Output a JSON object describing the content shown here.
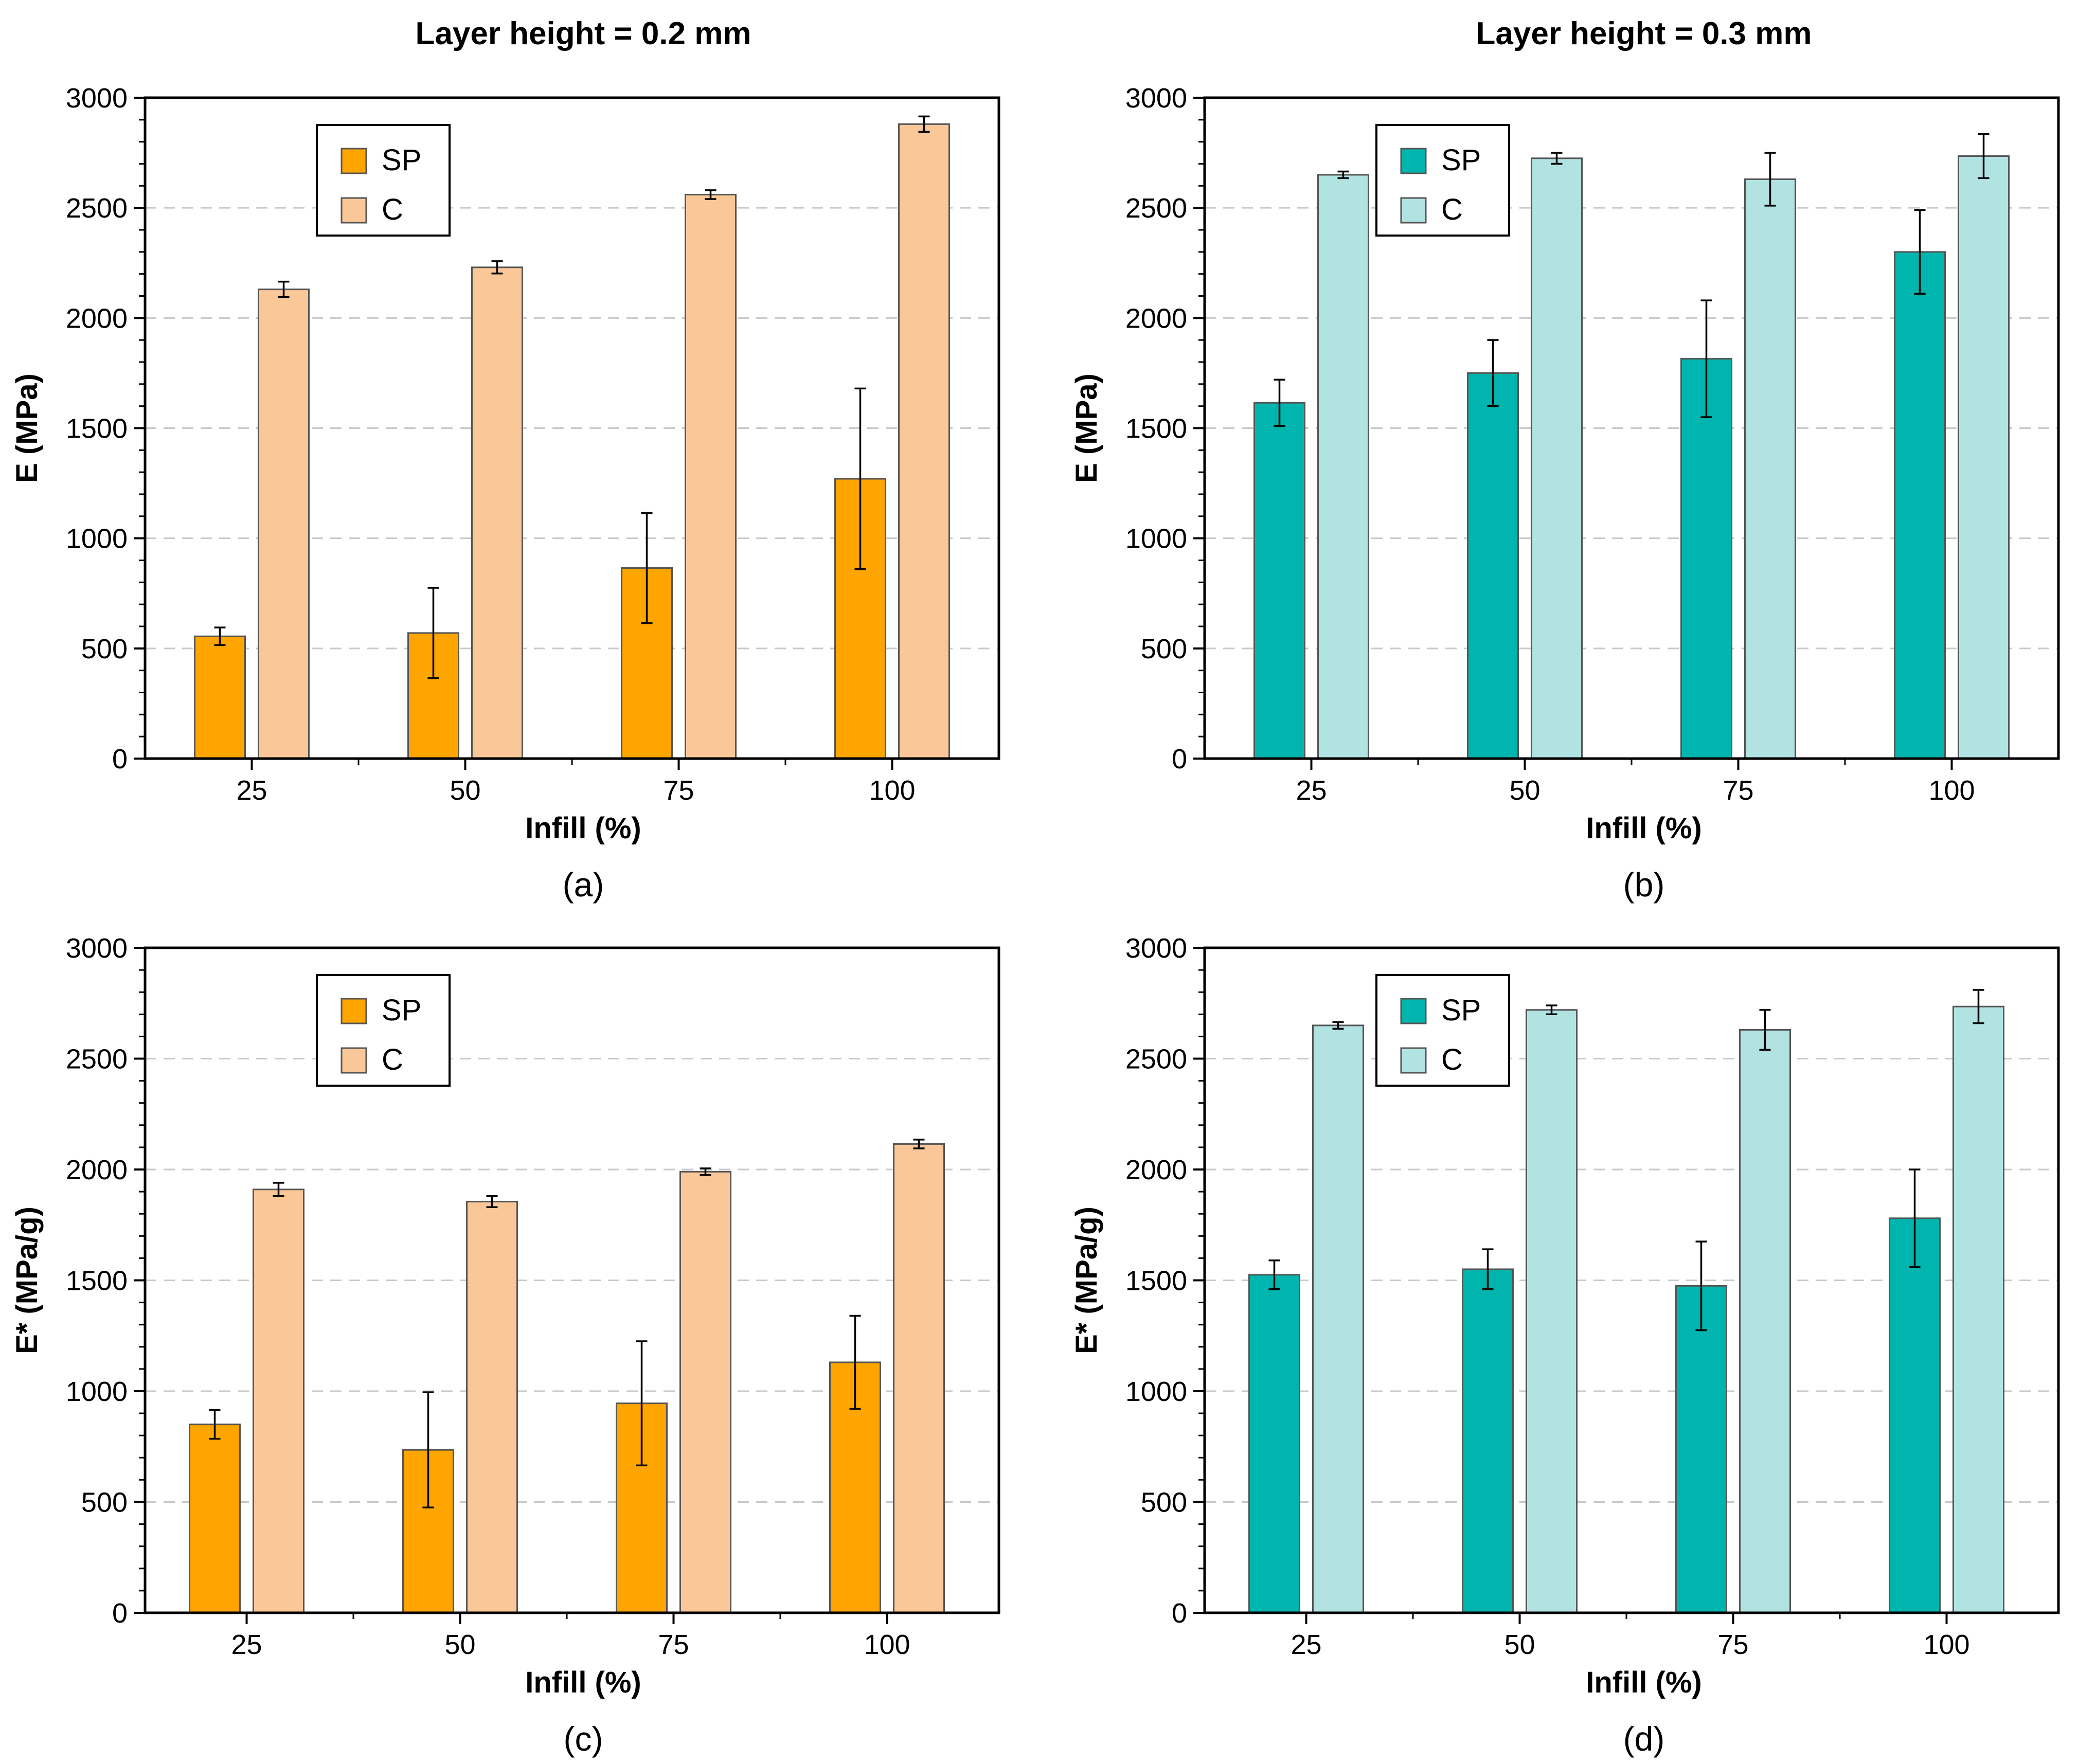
{
  "column_titles": [
    "Layer height = 0.2 mm",
    "Layer height = 0.3 mm"
  ],
  "colors": {
    "sp_orange": "#FFA500",
    "c_orange": "#FAC898",
    "sp_teal": "#00B5AD",
    "c_teal": "#B2E3E3",
    "bar_edge": "#555555",
    "grid": "#C8C8C8"
  },
  "chart_data": [
    {
      "type": "bar",
      "panel": "(a)",
      "title": "Layer height = 0.2 mm",
      "xlabel": "Infill (%)",
      "ylabel": "E (MPa)",
      "ylim": [
        0,
        3000
      ],
      "yticks": [
        0,
        500,
        1000,
        1500,
        2000,
        2500,
        3000
      ],
      "categories": [
        "25",
        "50",
        "75",
        "100"
      ],
      "legend_position": "top-left",
      "grid": "horizontal dashed",
      "series": [
        {
          "name": "SP",
          "values": [
            555,
            570,
            865,
            1270
          ],
          "errors": [
            40,
            205,
            250,
            410
          ]
        },
        {
          "name": "C",
          "values": [
            2130,
            2230,
            2560,
            2880
          ],
          "errors": [
            35,
            28,
            20,
            35
          ]
        }
      ]
    },
    {
      "type": "bar",
      "panel": "(b)",
      "title": "Layer height = 0.3 mm",
      "xlabel": "Infill (%)",
      "ylabel": "E (MPa)",
      "ylim": [
        0,
        3000
      ],
      "yticks": [
        0,
        500,
        1000,
        1500,
        2000,
        2500,
        3000
      ],
      "categories": [
        "25",
        "50",
        "75",
        "100"
      ],
      "legend_position": "top-left",
      "grid": "horizontal dashed",
      "series": [
        {
          "name": "SP",
          "values": [
            1615,
            1750,
            1815,
            2300
          ],
          "errors": [
            105,
            150,
            265,
            190
          ]
        },
        {
          "name": "C",
          "values": [
            2650,
            2725,
            2630,
            2735
          ],
          "errors": [
            15,
            25,
            120,
            100
          ]
        }
      ]
    },
    {
      "type": "bar",
      "panel": "(c)",
      "xlabel": "Infill (%)",
      "ylabel": "E* (MPa/g)",
      "ylim": [
        0,
        3000
      ],
      "yticks": [
        0,
        500,
        1000,
        1500,
        2000,
        2500,
        3000
      ],
      "categories": [
        "25",
        "50",
        "75",
        "100"
      ],
      "legend_position": "top-left",
      "grid": "horizontal dashed",
      "series": [
        {
          "name": "SP",
          "values": [
            850,
            735,
            945,
            1130
          ],
          "errors": [
            65,
            260,
            280,
            210
          ]
        },
        {
          "name": "C",
          "values": [
            1910,
            1855,
            1990,
            2115
          ],
          "errors": [
            30,
            25,
            15,
            20
          ]
        }
      ]
    },
    {
      "type": "bar",
      "panel": "(d)",
      "xlabel": "Infill (%)",
      "ylabel": "E* (MPa/g)",
      "ylim": [
        0,
        3000
      ],
      "yticks": [
        0,
        500,
        1000,
        1500,
        2000,
        2500,
        3000
      ],
      "categories": [
        "25",
        "50",
        "75",
        "100"
      ],
      "legend_position": "top-left",
      "grid": "horizontal dashed",
      "series": [
        {
          "name": "SP",
          "values": [
            1525,
            1550,
            1475,
            1780
          ],
          "errors": [
            65,
            90,
            200,
            220
          ]
        },
        {
          "name": "C",
          "values": [
            2650,
            2720,
            2630,
            2735
          ],
          "errors": [
            15,
            20,
            90,
            75
          ]
        }
      ]
    }
  ]
}
